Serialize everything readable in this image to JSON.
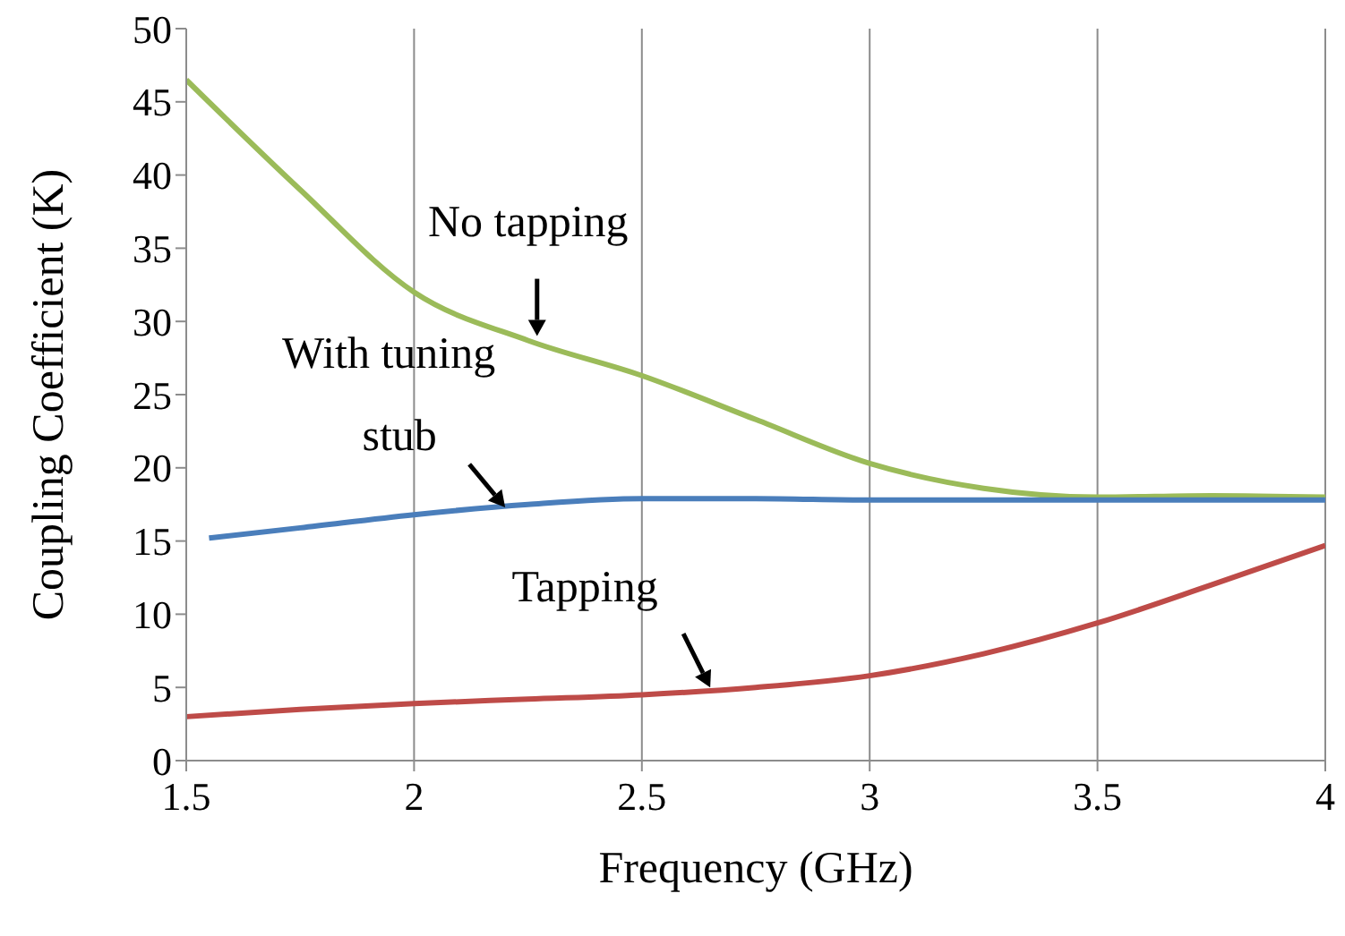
{
  "chart_data": {
    "type": "line",
    "xlabel": "Frequency (GHz)",
    "ylabel": "Coupling Coefficient (K)",
    "xlim": [
      1.5,
      4
    ],
    "xticks": [
      1.5,
      2,
      2.5,
      3,
      3.5,
      4
    ],
    "ylim": [
      0,
      50
    ],
    "yticks": [
      0,
      5,
      10,
      15,
      20,
      25,
      30,
      35,
      40,
      45,
      50
    ],
    "grid": "x",
    "marker": "none",
    "line_style": "solid",
    "legend": false,
    "series": [
      {
        "color": "#9bbb59",
        "x": [
          1.5,
          1.75,
          2,
          2.25,
          2.5,
          2.75,
          3,
          3.25,
          3.5,
          3.75,
          4
        ],
        "values": [
          46.5,
          39,
          32,
          28.7,
          26.3,
          23.3,
          20.3,
          18.6,
          18,
          18.1,
          18
        ]
      },
      {
        "color": "#4a7ebb",
        "x": [
          1.55,
          1.75,
          2,
          2.25,
          2.5,
          2.75,
          3,
          3.5,
          4
        ],
        "values": [
          15.2,
          15.9,
          16.8,
          17.5,
          17.9,
          17.9,
          17.8,
          17.8,
          17.8
        ]
      },
      {
        "color": "#be4b48",
        "x": [
          1.5,
          1.75,
          2,
          2.25,
          2.5,
          2.75,
          3,
          3.25,
          3.5,
          3.75,
          4
        ],
        "values": [
          3,
          3.5,
          3.9,
          4.2,
          4.5,
          5,
          5.8,
          7.3,
          9.4,
          12,
          14.7
        ]
      }
    ],
    "annotations": [
      {
        "text": "No tapping",
        "x": 2.27,
        "y": 29
      },
      {
        "text": "With tuning stub",
        "x": 2.2,
        "y": 17.3
      },
      {
        "text": "Tapping",
        "x": 2.65,
        "y": 5
      }
    ]
  }
}
